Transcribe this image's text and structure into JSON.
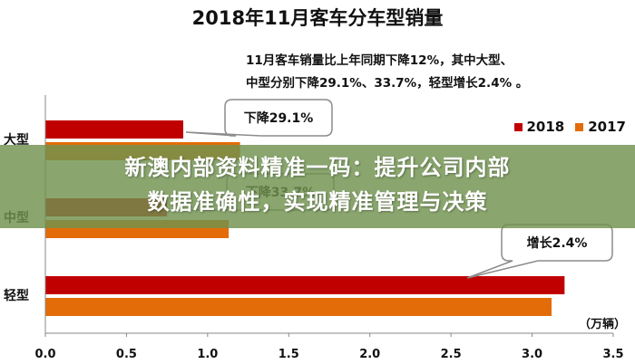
{
  "chart_data": {
    "type": "bar",
    "orientation": "horizontal",
    "title": "2018年11月客车分车型销量",
    "subtitle_lines": [
      "11月客车销量比上年同期下降12%，其中大型、",
      "中型分别下降29.1%、33.7%，轻型增长2.4% 。"
    ],
    "categories": [
      "大型",
      "中型",
      "轻型"
    ],
    "series": [
      {
        "name": "2018",
        "color": "#c00000",
        "values": [
          0.85,
          0.75,
          3.2
        ]
      },
      {
        "name": "2017",
        "color": "#e36c09",
        "values": [
          1.2,
          1.13,
          3.12
        ]
      }
    ],
    "xlim": [
      0,
      3.5
    ],
    "x_ticks": [
      "0.0",
      "0.5",
      "1.0",
      "1.5",
      "2.0",
      "2.5",
      "3.0",
      "3.5"
    ],
    "unit_label": "（万辆）",
    "legend_position": "top-right",
    "grid": false,
    "annotations": [
      {
        "text": "下降29.1%",
        "category": "大型"
      },
      {
        "text": "下降33.7%",
        "category": "中型"
      },
      {
        "text": "增长2.4%",
        "category": "轻型"
      }
    ]
  },
  "banner": {
    "line1": "新澳内部资料精准一码：提升公司内部",
    "line2": "数据准确性，实现精准管理与决策"
  }
}
